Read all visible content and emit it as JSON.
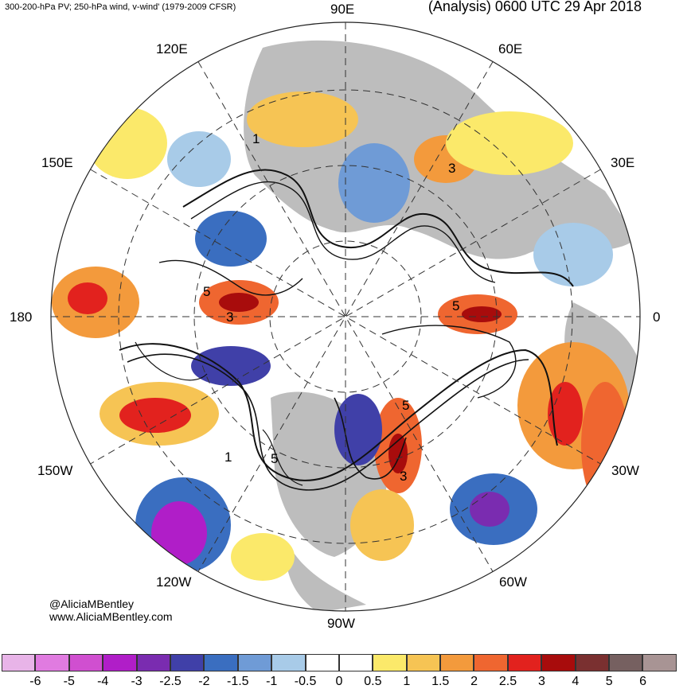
{
  "header": {
    "left": "300-200-hPa PV; 250-hPa wind, v-wind' (1979-2009 CFSR)",
    "right": "(Analysis) 0600 UTC 29 Apr 2018"
  },
  "credits": {
    "twitter": "@AliciaMBentley",
    "website": "www.AliciaMBentley.com"
  },
  "map": {
    "projection": "north-polar-stereographic",
    "longitude_labels": [
      "90E",
      "60E",
      "30E",
      "0",
      "30W",
      "60W",
      "90W",
      "120W",
      "150W",
      "180",
      "150E",
      "120E"
    ],
    "contour_labels": [
      "5",
      "5",
      "5",
      "3",
      "3",
      "3",
      "1",
      "1",
      "5"
    ],
    "colors": {
      "land": "#bdbdbd",
      "ocean": "#ffffff"
    }
  },
  "colorbar": {
    "ticks": [
      "-6",
      "-5",
      "-4",
      "-3",
      "-2.5",
      "-2",
      "-1.5",
      "-1",
      "-0.5",
      "0",
      "0.5",
      "1",
      "1.5",
      "2",
      "2.5",
      "3",
      "4",
      "5",
      "6"
    ],
    "colors": [
      "#e8b4e8",
      "#e07be0",
      "#d04fd0",
      "#b01ec8",
      "#7a2cb0",
      "#4040a8",
      "#3a6ec0",
      "#6f9bd6",
      "#a8cbe8",
      "#ffffff",
      "#ffffff",
      "#fbe96a",
      "#f6c454",
      "#f39a3c",
      "#ef6630",
      "#e2221e",
      "#a80c0c",
      "#7a3030",
      "#766060",
      "#a89494"
    ]
  }
}
